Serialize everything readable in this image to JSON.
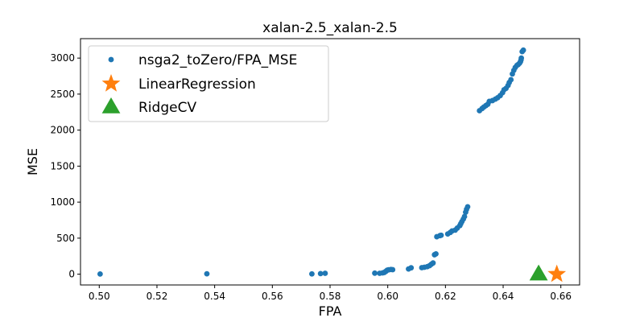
{
  "chart_data": {
    "type": "scatter",
    "title": "xalan-2.5_xalan-2.5",
    "xlabel": "FPA",
    "ylabel": "MSE",
    "xlim": [
      0.4935,
      0.6665
    ],
    "ylim": [
      -150,
      3270
    ],
    "xticks": [
      0.5,
      0.52,
      0.54,
      0.56,
      0.58,
      0.6,
      0.62,
      0.64,
      0.66
    ],
    "xtick_labels": [
      "0.50",
      "0.52",
      "0.54",
      "0.56",
      "0.58",
      "0.60",
      "0.62",
      "0.64",
      "0.66"
    ],
    "yticks": [
      0,
      500,
      1000,
      1500,
      2000,
      2500,
      3000
    ],
    "ytick_labels": [
      "0",
      "500",
      "1000",
      "1500",
      "2000",
      "2500",
      "3000"
    ],
    "grid": false,
    "legend_position": "top-left",
    "series": [
      {
        "name": "nsga2_toZero/FPA_MSE",
        "marker": "circle",
        "color": "#1f77b4",
        "points": [
          [
            0.5003,
            2
          ],
          [
            0.5373,
            5
          ],
          [
            0.5737,
            4
          ],
          [
            0.5767,
            8
          ],
          [
            0.5783,
            12
          ],
          [
            0.5955,
            14
          ],
          [
            0.5972,
            12
          ],
          [
            0.5982,
            18
          ],
          [
            0.5988,
            24
          ],
          [
            0.5993,
            38
          ],
          [
            0.5998,
            55
          ],
          [
            0.6003,
            60
          ],
          [
            0.6011,
            65
          ],
          [
            0.6017,
            62
          ],
          [
            0.6072,
            72
          ],
          [
            0.6081,
            88
          ],
          [
            0.6118,
            90
          ],
          [
            0.6127,
            96
          ],
          [
            0.6137,
            104
          ],
          [
            0.6145,
            118
          ],
          [
            0.6151,
            138
          ],
          [
            0.6157,
            155
          ],
          [
            0.6162,
            270
          ],
          [
            0.6167,
            282
          ],
          [
            0.617,
            520
          ],
          [
            0.6181,
            535
          ],
          [
            0.6185,
            540
          ],
          [
            0.6208,
            558
          ],
          [
            0.6217,
            580
          ],
          [
            0.6223,
            600
          ],
          [
            0.6234,
            612
          ],
          [
            0.6241,
            640
          ],
          [
            0.625,
            675
          ],
          [
            0.6253,
            700
          ],
          [
            0.6257,
            730
          ],
          [
            0.6262,
            765
          ],
          [
            0.6266,
            800
          ],
          [
            0.627,
            860
          ],
          [
            0.6273,
            900
          ],
          [
            0.6277,
            935
          ],
          [
            0.6318,
            2270
          ],
          [
            0.6327,
            2300
          ],
          [
            0.6333,
            2320
          ],
          [
            0.634,
            2340
          ],
          [
            0.6347,
            2360
          ],
          [
            0.6352,
            2400
          ],
          [
            0.6363,
            2410
          ],
          [
            0.6373,
            2430
          ],
          [
            0.6381,
            2450
          ],
          [
            0.639,
            2480
          ],
          [
            0.6398,
            2520
          ],
          [
            0.6403,
            2560
          ],
          [
            0.641,
            2580
          ],
          [
            0.6417,
            2620
          ],
          [
            0.6421,
            2660
          ],
          [
            0.6427,
            2700
          ],
          [
            0.6432,
            2780
          ],
          [
            0.6437,
            2830
          ],
          [
            0.6442,
            2870
          ],
          [
            0.6448,
            2900
          ],
          [
            0.6452,
            2910
          ],
          [
            0.6457,
            2930
          ],
          [
            0.646,
            2950
          ],
          [
            0.6462,
            2975
          ],
          [
            0.6463,
            3000
          ],
          [
            0.6466,
            3090
          ],
          [
            0.647,
            3110
          ]
        ]
      },
      {
        "name": "LinearRegression",
        "marker": "star",
        "color": "#ff7f0e",
        "points": [
          [
            0.6586,
            0
          ]
        ]
      },
      {
        "name": "RidgeCV",
        "marker": "triangle",
        "color": "#2ca02c",
        "points": [
          [
            0.6523,
            0
          ]
        ]
      }
    ]
  }
}
